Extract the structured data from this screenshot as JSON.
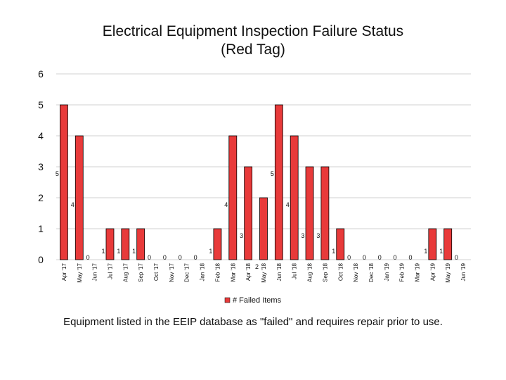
{
  "title_line1": "Electrical Equipment Inspection Failure Status",
  "title_line2": "(Red Tag)",
  "caption": "Equipment listed in the EEIP database as \"failed\" and requires repair prior to use.",
  "colors": {
    "bar": "#e83a3a",
    "bar_edge": "#000000",
    "grid": "#d0d0d0"
  },
  "chart_data": {
    "type": "bar",
    "categories": [
      "Apr '17",
      "May '17",
      "Jun '17",
      "Jul '17",
      "Aug '17",
      "Sep '17",
      "Oct '17",
      "Nov '17",
      "Dec '17",
      "Jan '18",
      "Feb '18",
      "Mar '18",
      "Apr '18",
      "May '18",
      "Jun '18",
      "Jul '18",
      "Aug '18",
      "Sep '18",
      "Oct '18",
      "Nov '18",
      "Dec '18",
      "Jan '19",
      "Feb '19",
      "Mar '19",
      "Apr '19",
      "May '19",
      "Jun '19"
    ],
    "series": [
      {
        "name": "# Failed Items",
        "values": [
          5,
          4,
          0,
          1,
          1,
          1,
          0,
          0,
          0,
          0,
          1,
          4,
          3,
          2,
          5,
          4,
          3,
          3,
          1,
          0,
          0,
          0,
          0,
          0,
          1,
          1,
          0
        ]
      }
    ],
    "yticks": [
      "0",
      "1",
      "2",
      "3",
      "4",
      "5",
      "6"
    ],
    "ylim": [
      0,
      6
    ],
    "grid": true,
    "legend": "bottom"
  }
}
